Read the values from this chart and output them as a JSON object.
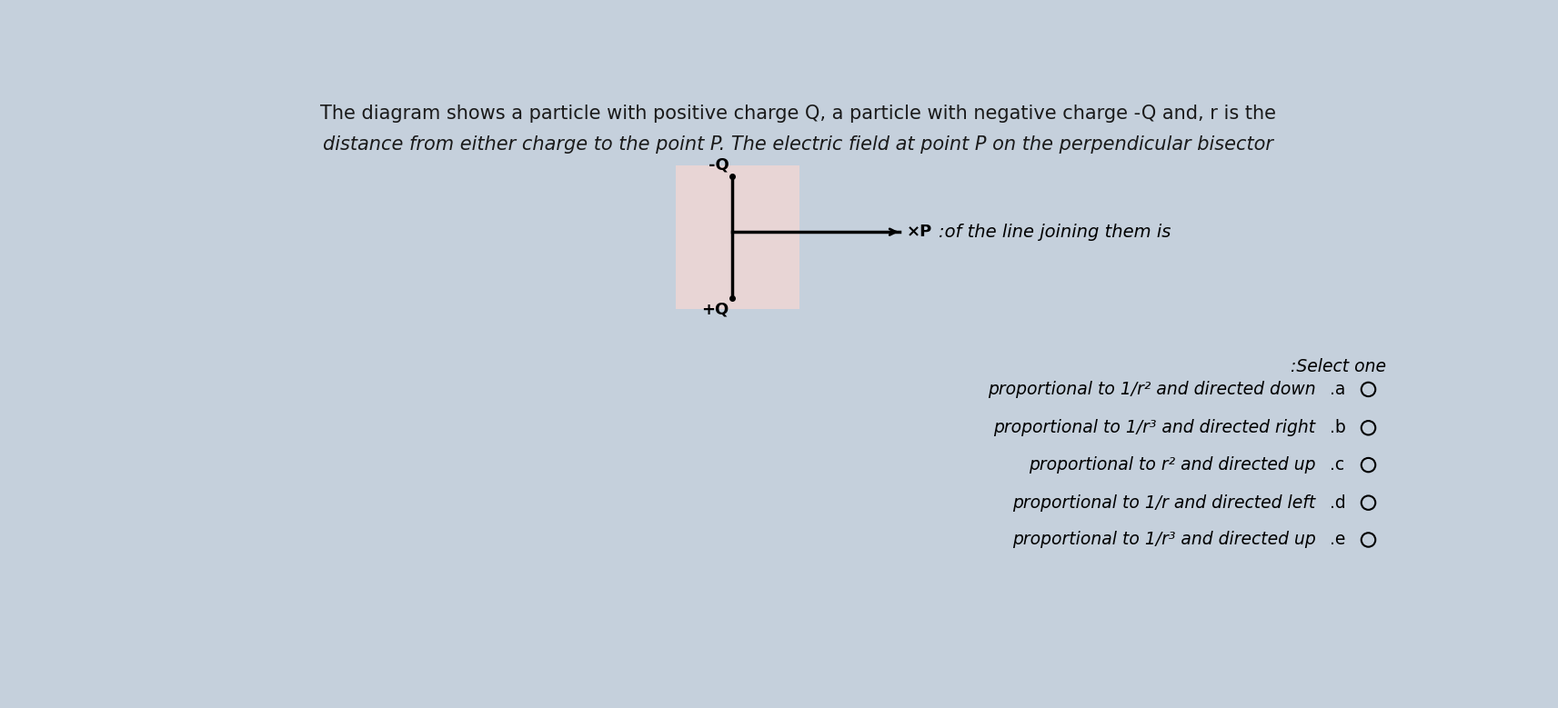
{
  "background_color": "#c5d0dc",
  "diagram_bg_color": "#e8d5d5",
  "title_line1": "The diagram shows a particle with positive charge Q, a particle with negative charge -Q and, r is the",
  "title_line2": "distance from either charge to the point P. The electric field at point P on the perpendicular bisector",
  "title_fontsize": 15,
  "title_color": "#1a1a1a",
  "select_one_text": ":Select one",
  "options_main": [
    "proportional to 1/",
    "proportional to 1/",
    "proportional to ",
    "proportional to 1/",
    "proportional to 1/"
  ],
  "options_math": [
    "r²",
    "r³",
    "r²",
    "r",
    "r³"
  ],
  "options_tail": [
    " and directed down",
    " and directed right",
    " and directed up",
    " and directed left",
    " and directed up"
  ],
  "options_letter": [
    ".a",
    ".b",
    ".c",
    ".d",
    ".e"
  ],
  "of_line_text": ":of the line joining them is",
  "font_family": "DejaVu Sans"
}
